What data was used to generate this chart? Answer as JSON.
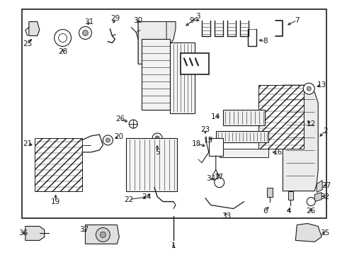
{
  "bg_color": "#ffffff",
  "border_color": "#1a1a1a",
  "line_color": "#1a1a1a",
  "text_color": "#1a1a1a",
  "fig_width": 4.9,
  "fig_height": 3.6,
  "dpi": 100
}
